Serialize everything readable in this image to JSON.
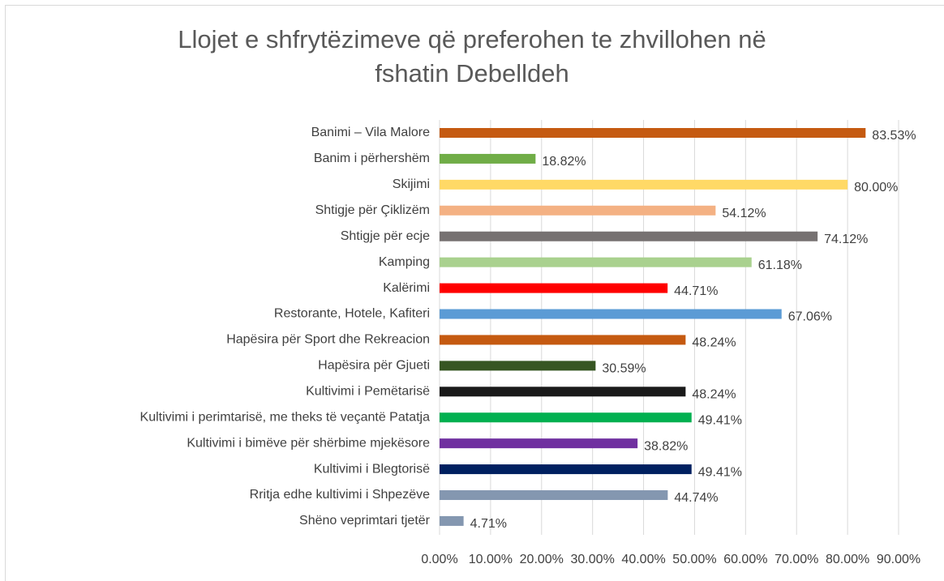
{
  "chart_data": {
    "type": "bar",
    "orientation": "horizontal",
    "title": "Llojet e shfrytëzimeve që preferohen te zhvillohen në fshatin Debelldeh",
    "categories": [
      "Banimi – Vila Malore",
      "Banim i përhershëm",
      "Skijimi",
      "Shtigje për Çiklizëm",
      "Shtigje për ecje",
      "Kamping",
      "Kalërimi",
      "Restorante, Hotele, Kafiteri",
      "Hapësira për Sport dhe Rekreacion",
      "Hapësira për Gjueti",
      "Kultivimi i Pemëtarisë",
      "Kultivimi i perimtarisë, me theks të veçantë Patatja",
      "Kultivimi i bimëve për shërbime mjekësore",
      "Kultivimi i Blegtorisë",
      "Rritja edhe kultivimi i Shpezëve",
      "Shëno veprimtari tjetër"
    ],
    "values": [
      83.53,
      18.82,
      80.0,
      54.12,
      74.12,
      61.18,
      44.71,
      67.06,
      48.24,
      30.59,
      48.24,
      49.41,
      38.82,
      49.41,
      44.74,
      4.71
    ],
    "value_labels": [
      "83.53%",
      "18.82%",
      "80.00%",
      "54.12%",
      "74.12%",
      "61.18%",
      "44.71%",
      "67.06%",
      "48.24%",
      "30.59%",
      "48.24%",
      "49.41%",
      "38.82%",
      "49.41%",
      "44.74%",
      "4.71%"
    ],
    "colors": [
      "#c55a11",
      "#70ad47",
      "#ffd966",
      "#f4b183",
      "#767171",
      "#a9d18e",
      "#ff0000",
      "#5b9bd5",
      "#c55a11",
      "#375623",
      "#1a1a1a",
      "#00b050",
      "#7030a0",
      "#002060",
      "#8497b0",
      "#8497b0"
    ],
    "xlim": [
      0,
      90
    ],
    "xticks": [
      {
        "value": 0,
        "label": "0.00%"
      },
      {
        "value": 10,
        "label": "10.00%"
      },
      {
        "value": 20,
        "label": "20.00%"
      },
      {
        "value": 30,
        "label": "30.00%"
      },
      {
        "value": 40,
        "label": "40.00%"
      },
      {
        "value": 50,
        "label": "50.00%"
      },
      {
        "value": 60,
        "label": "60.00%"
      },
      {
        "value": 70,
        "label": "70.00%"
      },
      {
        "value": 80,
        "label": "80.00%"
      },
      {
        "value": 90,
        "label": "90.00%"
      }
    ],
    "grid": true
  }
}
